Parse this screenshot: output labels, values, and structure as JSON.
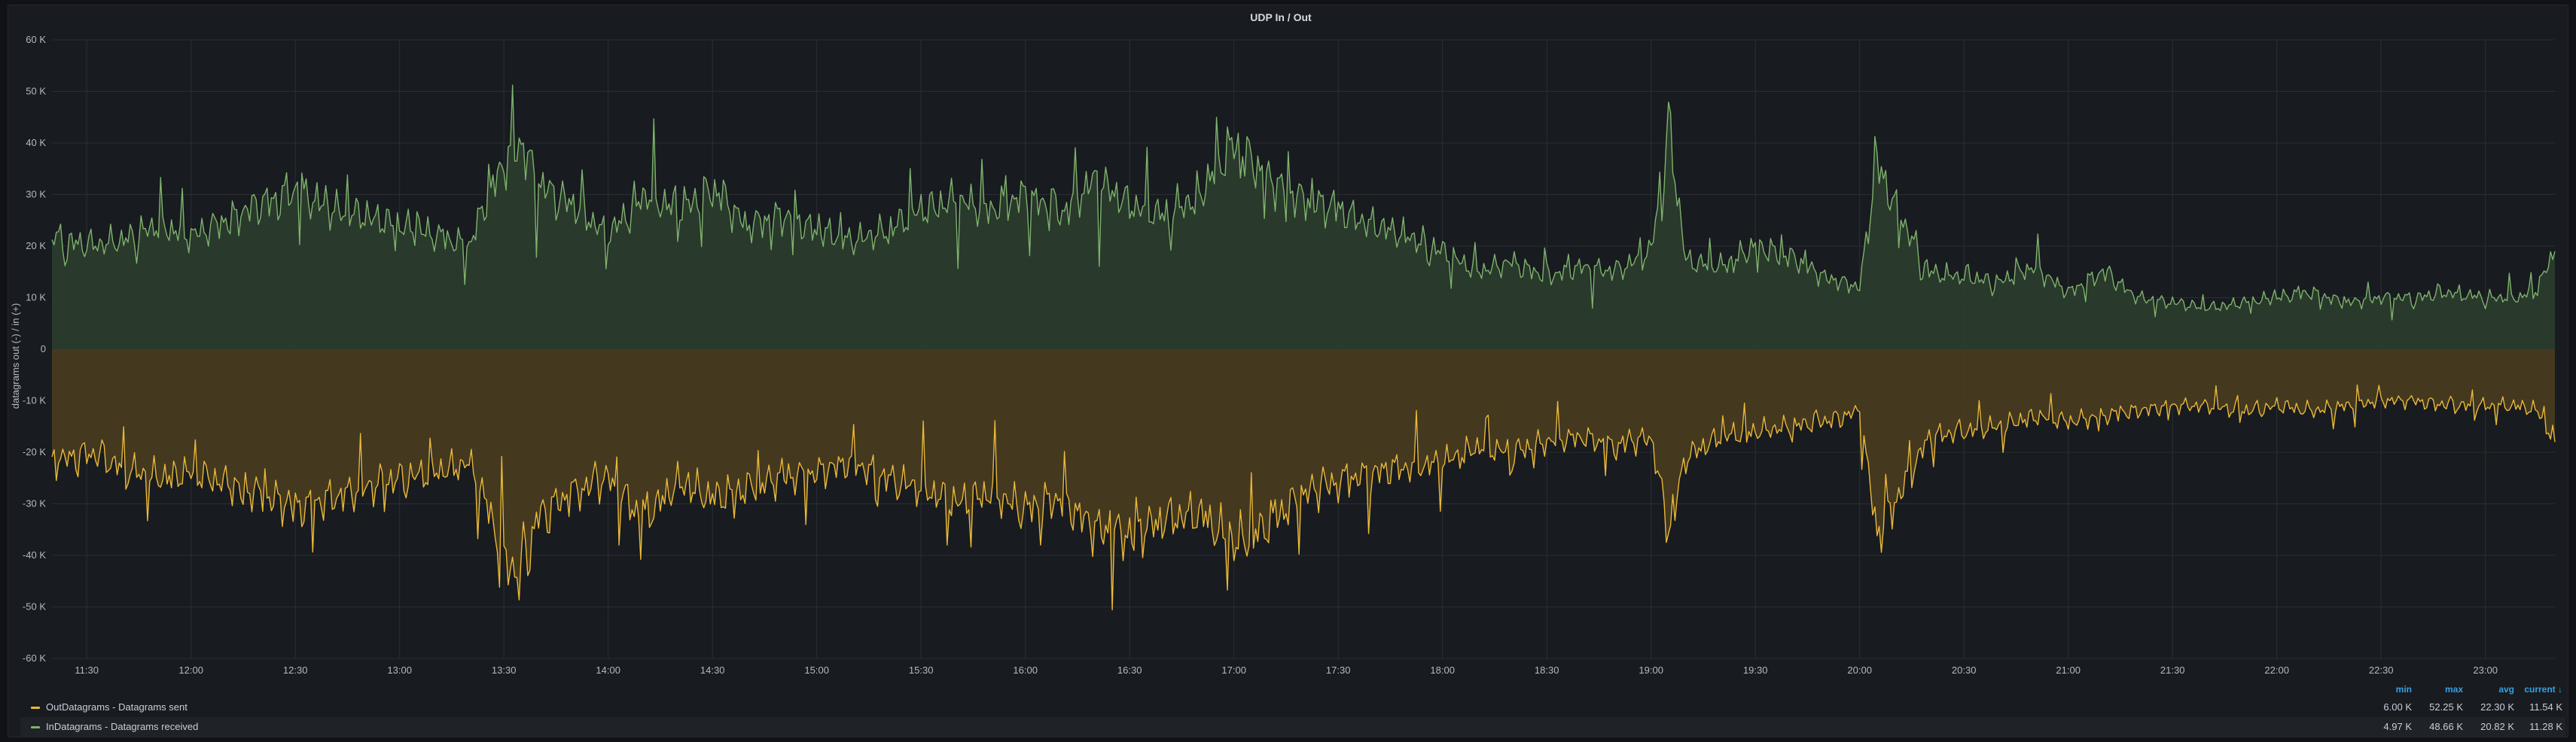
{
  "panel": {
    "legend_headers": {
      "min": "min",
      "max": "max",
      "avg": "avg",
      "current": "current ↓"
    },
    "legend_rows": [
      {
        "name": "OutDatagrams - Datagrams sent",
        "min": "6.00 K",
        "max": "52.25 K",
        "avg": "22.30 K",
        "current": "11.54 K",
        "color": "#eab839"
      },
      {
        "name": "InDatagrams - Datagrams received",
        "min": "4.97 K",
        "max": "48.66 K",
        "avg": "20.82 K",
        "current": "11.28 K",
        "color": "#7eb26d"
      }
    ]
  },
  "chart_data": {
    "type": "area",
    "title": "UDP In / Out",
    "ylabel": "datagrams out (-) / in (+)",
    "xlabel": "",
    "ylim": [
      -60000,
      60000
    ],
    "yticks": [
      60000,
      50000,
      40000,
      30000,
      20000,
      10000,
      0,
      -10000,
      -20000,
      -30000,
      -40000,
      -50000,
      -60000
    ],
    "ytick_labels": [
      "60 K",
      "50 K",
      "40 K",
      "30 K",
      "20 K",
      "10 K",
      "0",
      "-10 K",
      "-20 K",
      "-30 K",
      "-40 K",
      "-50 K",
      "-60 K"
    ],
    "xlim": [
      "11:20",
      "23:20"
    ],
    "xtick_labels": [
      "11:30",
      "12:00",
      "12:30",
      "13:00",
      "13:30",
      "14:00",
      "14:30",
      "15:00",
      "15:30",
      "16:00",
      "16:30",
      "17:00",
      "17:30",
      "18:00",
      "18:30",
      "19:00",
      "19:30",
      "20:00",
      "20:30",
      "21:00",
      "21:30",
      "22:00",
      "22:30",
      "23:00"
    ],
    "grid": true,
    "legend": "bottom",
    "series": [
      {
        "name": "InDatagrams - Datagrams received",
        "color": "#7eb26d",
        "fill": "#2a3b2c",
        "x": [
          "11:20",
          "11:30",
          "11:40",
          "11:50",
          "12:00",
          "12:10",
          "12:20",
          "12:30",
          "12:40",
          "12:50",
          "13:00",
          "13:10",
          "13:20",
          "13:25",
          "13:30",
          "13:35",
          "13:40",
          "13:50",
          "14:00",
          "14:10",
          "14:20",
          "14:30",
          "14:40",
          "14:50",
          "15:00",
          "15:10",
          "15:20",
          "15:30",
          "15:40",
          "15:50",
          "16:00",
          "16:10",
          "16:20",
          "16:30",
          "16:40",
          "16:50",
          "17:00",
          "17:10",
          "17:20",
          "17:30",
          "17:40",
          "17:50",
          "18:00",
          "18:10",
          "18:20",
          "18:30",
          "18:40",
          "18:50",
          "19:00",
          "19:05",
          "19:10",
          "19:20",
          "19:30",
          "19:40",
          "19:50",
          "20:00",
          "20:05",
          "20:10",
          "20:20",
          "20:30",
          "20:40",
          "20:50",
          "21:00",
          "21:10",
          "21:20",
          "21:30",
          "21:40",
          "21:50",
          "22:00",
          "22:10",
          "22:20",
          "22:30",
          "22:40",
          "22:50",
          "23:00",
          "23:10",
          "23:15",
          "23:20"
        ],
        "values": [
          22000,
          20000,
          21000,
          24000,
          22000,
          25000,
          28000,
          31000,
          27000,
          26000,
          24000,
          22000,
          20000,
          29000,
          36000,
          40000,
          32000,
          28000,
          22000,
          30000,
          27000,
          31000,
          24000,
          26000,
          23000,
          21000,
          23000,
          27000,
          29000,
          27000,
          30000,
          26000,
          33000,
          28000,
          26000,
          30000,
          40000,
          33000,
          29000,
          27000,
          24000,
          22000,
          19000,
          15000,
          17000,
          14000,
          16000,
          15000,
          19000,
          44000,
          17000,
          16000,
          20000,
          18000,
          14000,
          12000,
          36000,
          28000,
          15000,
          14000,
          13000,
          16000,
          11000,
          15000,
          10000,
          9000,
          8000,
          9000,
          10000,
          11000,
          9000,
          10000,
          10000,
          11000,
          10000,
          10000,
          12000,
          19000
        ]
      },
      {
        "name": "OutDatagrams - Datagrams sent",
        "color": "#eab839",
        "fill": "#473b20",
        "x": [
          "11:20",
          "11:30",
          "11:40",
          "11:50",
          "12:00",
          "12:10",
          "12:20",
          "12:30",
          "12:40",
          "12:50",
          "13:00",
          "13:10",
          "13:20",
          "13:25",
          "13:30",
          "13:35",
          "13:40",
          "13:50",
          "14:00",
          "14:10",
          "14:20",
          "14:30",
          "14:40",
          "14:50",
          "15:00",
          "15:10",
          "15:20",
          "15:30",
          "15:40",
          "15:50",
          "16:00",
          "16:10",
          "16:20",
          "16:30",
          "16:40",
          "16:50",
          "17:00",
          "17:10",
          "17:20",
          "17:30",
          "17:40",
          "17:50",
          "18:00",
          "18:10",
          "18:20",
          "18:30",
          "18:40",
          "18:50",
          "19:00",
          "19:05",
          "19:10",
          "19:20",
          "19:30",
          "19:40",
          "19:50",
          "20:00",
          "20:05",
          "20:10",
          "20:20",
          "20:30",
          "20:40",
          "20:50",
          "21:00",
          "21:10",
          "21:20",
          "21:30",
          "21:40",
          "21:50",
          "22:00",
          "22:10",
          "22:20",
          "22:30",
          "22:40",
          "22:50",
          "23:00",
          "23:10",
          "23:15",
          "23:20"
        ],
        "values": [
          -22000,
          -20000,
          -23000,
          -25000,
          -24000,
          -26000,
          -28000,
          -31000,
          -29000,
          -27000,
          -25000,
          -24000,
          -22000,
          -30000,
          -40000,
          -45000,
          -32000,
          -28000,
          -25000,
          -33000,
          -26000,
          -29000,
          -27000,
          -25000,
          -24000,
          -22000,
          -25000,
          -27000,
          -30000,
          -28000,
          -31000,
          -29000,
          -35000,
          -36000,
          -33000,
          -32000,
          -38000,
          -34000,
          -28000,
          -26000,
          -24000,
          -23000,
          -22000,
          -19000,
          -20000,
          -18000,
          -17000,
          -19000,
          -17000,
          -35000,
          -21000,
          -17000,
          -16000,
          -15000,
          -14000,
          -12000,
          -36000,
          -30000,
          -17000,
          -16000,
          -15000,
          -13000,
          -14000,
          -13000,
          -12000,
          -11000,
          -11000,
          -12000,
          -11000,
          -12000,
          -11000,
          -10000,
          -10000,
          -11000,
          -11000,
          -11000,
          -12000,
          -18000
        ]
      }
    ]
  }
}
